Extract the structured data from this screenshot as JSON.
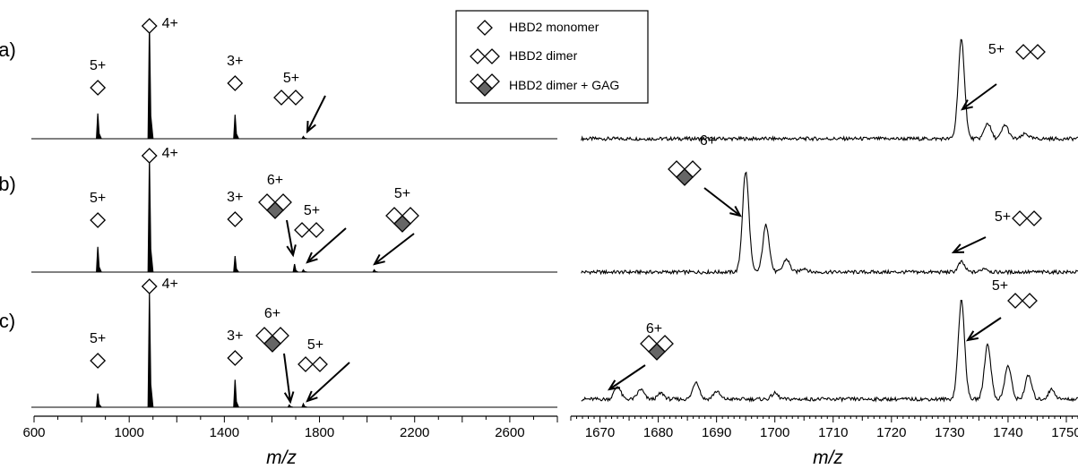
{
  "chart_data": [
    {
      "type": "line",
      "panel_labels": [
        "a)",
        "b)",
        "c)"
      ],
      "xlabel": "m/z",
      "xlim": [
        600,
        2800
      ],
      "xticks": [
        600,
        1000,
        1400,
        1800,
        2200,
        2600
      ],
      "legend": [
        {
          "label": "HBD2 monomer",
          "symbol": "monomer"
        },
        {
          "label": "HBD2 dimer",
          "symbol": "dimer"
        },
        {
          "label": "HBD2 dimer + GAG",
          "symbol": "dimer-gag"
        }
      ],
      "series": [
        {
          "peaks": [
            {
              "x": 868,
              "y": 0.22
            },
            {
              "x": 1085,
              "y": 1.0
            },
            {
              "x": 1445,
              "y": 0.21
            },
            {
              "x": 1732,
              "y": 0.02
            }
          ],
          "annotations": [
            {
              "text": "5+",
              "x": 868,
              "symbol": "monomer"
            },
            {
              "text": "4+",
              "x": 1085,
              "symbol": "monomer"
            },
            {
              "text": "3+",
              "x": 1445,
              "symbol": "monomer"
            },
            {
              "text": "5+",
              "x": 1732,
              "symbol": "dimer",
              "arrow": true
            }
          ]
        },
        {
          "peaks": [
            {
              "x": 868,
              "y": 0.22
            },
            {
              "x": 1085,
              "y": 1.0
            },
            {
              "x": 1445,
              "y": 0.14
            },
            {
              "x": 1695,
              "y": 0.07
            },
            {
              "x": 1732,
              "y": 0.02
            },
            {
              "x": 2030,
              "y": 0.02
            }
          ],
          "annotations": [
            {
              "text": "5+",
              "x": 868,
              "symbol": "monomer"
            },
            {
              "text": "4+",
              "x": 1085,
              "symbol": "monomer"
            },
            {
              "text": "3+",
              "x": 1445,
              "symbol": "monomer"
            },
            {
              "text": "6+",
              "x": 1695,
              "symbol": "dimer-gag",
              "arrow": true
            },
            {
              "text": "5+",
              "x": 1732,
              "symbol": "dimer",
              "arrow": true
            },
            {
              "text": "5+",
              "x": 2030,
              "symbol": "dimer-gag",
              "arrow": true
            }
          ]
        },
        {
          "peaks": [
            {
              "x": 868,
              "y": 0.12
            },
            {
              "x": 1085,
              "y": 1.0
            },
            {
              "x": 1445,
              "y": 0.24
            },
            {
              "x": 1673,
              "y": 0.02
            },
            {
              "x": 1732,
              "y": 0.03
            }
          ],
          "annotations": [
            {
              "text": "5+",
              "x": 868,
              "symbol": "monomer"
            },
            {
              "text": "4+",
              "x": 1085,
              "symbol": "monomer"
            },
            {
              "text": "3+",
              "x": 1445,
              "symbol": "monomer"
            },
            {
              "text": "6+",
              "x": 1673,
              "symbol": "dimer-gag",
              "arrow": true
            },
            {
              "text": "5+",
              "x": 1732,
              "symbol": "dimer",
              "arrow": true
            }
          ]
        }
      ]
    },
    {
      "type": "line",
      "xlabel": "m/z",
      "xlim": [
        1665,
        1752
      ],
      "xticks": [
        1670,
        1680,
        1690,
        1700,
        1710,
        1720,
        1730,
        1740,
        1750
      ],
      "series": [
        {
          "peaks": [
            {
              "x": 1732,
              "y": 1.0
            },
            {
              "x": 1736.5,
              "y": 0.16
            },
            {
              "x": 1739.5,
              "y": 0.14
            },
            {
              "x": 1743,
              "y": 0.05
            }
          ],
          "annotations": [
            {
              "text": "5+",
              "x": 1732,
              "symbol": "dimer",
              "arrow": true
            }
          ]
        },
        {
          "peaks": [
            {
              "x": 1695,
              "y": 1.0
            },
            {
              "x": 1698.5,
              "y": 0.47
            },
            {
              "x": 1702,
              "y": 0.13
            },
            {
              "x": 1705,
              "y": 0.04
            },
            {
              "x": 1732,
              "y": 0.1
            },
            {
              "x": 1736,
              "y": 0.04
            }
          ],
          "annotations": [
            {
              "text": "6+",
              "x": 1695,
              "symbol": "dimer-gag",
              "arrow": true
            },
            {
              "text": "5+",
              "x": 1732,
              "symbol": "dimer",
              "arrow": true
            }
          ]
        },
        {
          "peaks": [
            {
              "x": 1673,
              "y": 0.13
            },
            {
              "x": 1677,
              "y": 0.1
            },
            {
              "x": 1680.5,
              "y": 0.06
            },
            {
              "x": 1686.5,
              "y": 0.18
            },
            {
              "x": 1690,
              "y": 0.08
            },
            {
              "x": 1700,
              "y": 0.06
            },
            {
              "x": 1732,
              "y": 1.0
            },
            {
              "x": 1736.5,
              "y": 0.56
            },
            {
              "x": 1740,
              "y": 0.34
            },
            {
              "x": 1743.5,
              "y": 0.24
            },
            {
              "x": 1747.5,
              "y": 0.1
            }
          ],
          "annotations": [
            {
              "text": "6+",
              "x": 1673,
              "symbol": "dimer-gag",
              "arrow": true
            },
            {
              "text": "5+",
              "x": 1732,
              "symbol": "dimer",
              "arrow": true
            }
          ]
        }
      ]
    }
  ]
}
